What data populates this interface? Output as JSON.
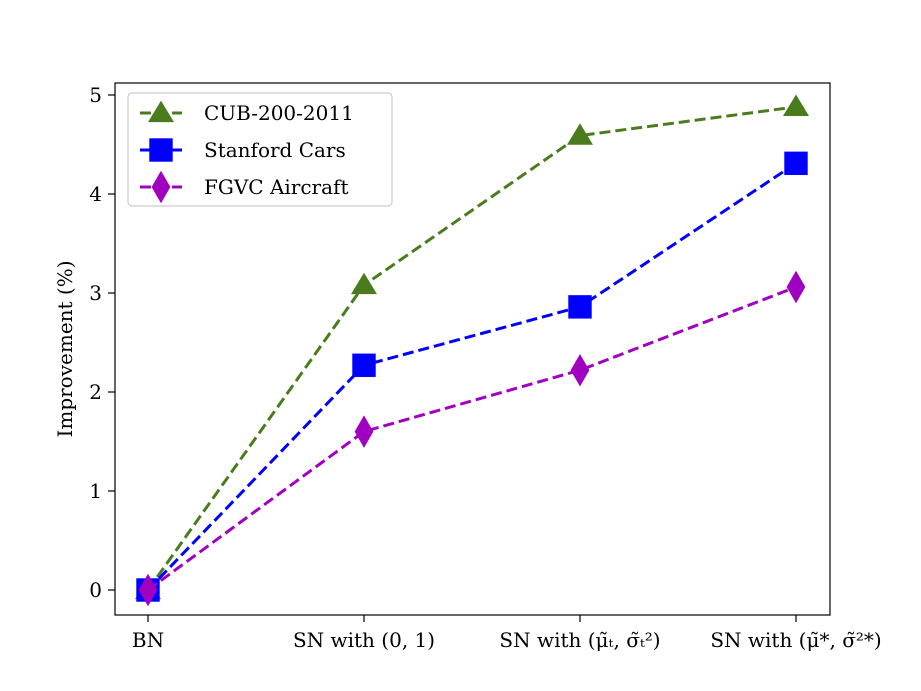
{
  "chart_data": {
    "type": "line",
    "categories": [
      "BN",
      "SN with (0, 1)",
      "SN with (μ̃ₜ, σ̃ₜ²)",
      "SN with (μ̃*, σ̃²*)"
    ],
    "ylabel": "Improvement (%)",
    "xlabel": "",
    "ylim": [
      -0.25,
      5.15
    ],
    "yticks": [
      0,
      1,
      2,
      3,
      4,
      5
    ],
    "grid": false,
    "legend_position": "top-left",
    "series": [
      {
        "name": "CUB-200-2011",
        "values": [
          0,
          3.08,
          4.59,
          4.88
        ],
        "color": "#4a7c1e",
        "marker": "triangle"
      },
      {
        "name": "Stanford Cars",
        "values": [
          0,
          2.27,
          2.86,
          4.31
        ],
        "color": "#0000ff",
        "marker": "square"
      },
      {
        "name": "FGVC Aircraft",
        "values": [
          0,
          1.6,
          2.22,
          3.06
        ],
        "color": "#a000c0",
        "marker": "diamond"
      }
    ]
  }
}
